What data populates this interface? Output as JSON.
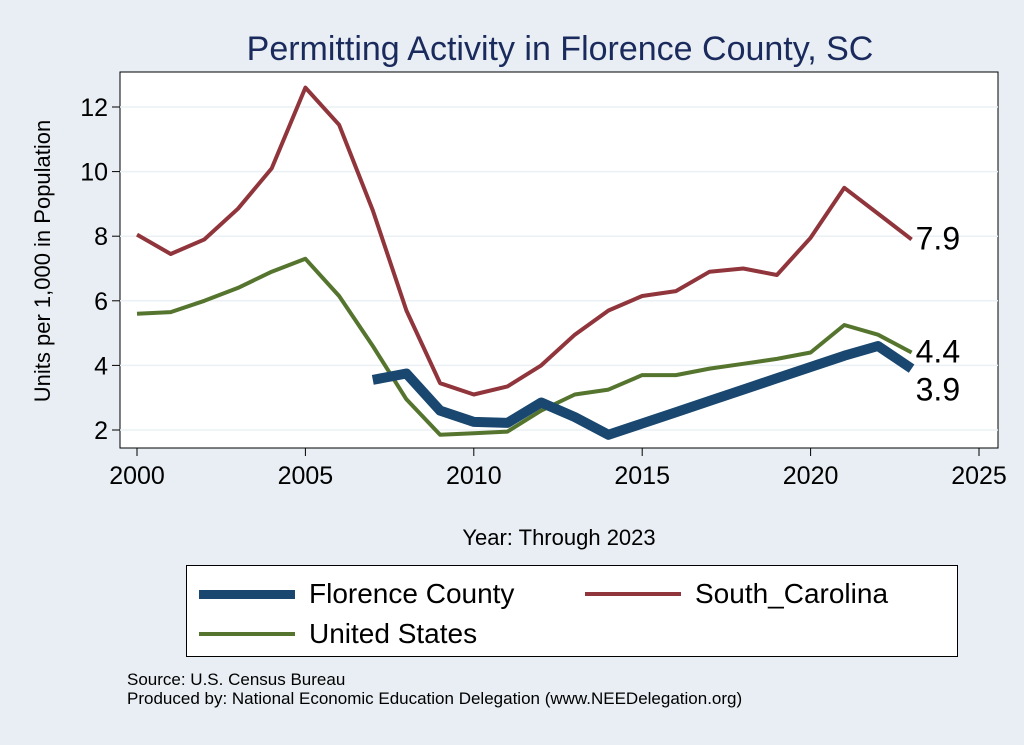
{
  "chart_data": {
    "type": "line",
    "title": "Permitting Activity in Florence County, SC",
    "xlabel": "Year: Through 2023",
    "ylabel": "Units per 1,000 in Population",
    "xlim": [
      2000,
      2025
    ],
    "ylim": [
      1.5,
      13
    ],
    "xticks": [
      2000,
      2005,
      2010,
      2015,
      2020,
      2025
    ],
    "yticks": [
      2,
      4,
      6,
      8,
      10,
      12
    ],
    "grid": true,
    "legend_position": "bottom",
    "series": [
      {
        "name": "Florence County",
        "color": "#1a476f",
        "x": [
          2007,
          2008,
          2009,
          2010,
          2011,
          2012,
          2013,
          2014,
          2015,
          2016,
          2017,
          2018,
          2019,
          2020,
          2021,
          2022,
          2023
        ],
        "y": [
          3.55,
          3.75,
          2.6,
          2.25,
          2.22,
          2.85,
          2.4,
          1.85,
          2.2,
          2.55,
          2.9,
          3.25,
          3.6,
          3.95,
          4.3,
          4.6,
          3.9
        ],
        "end_label": "3.9"
      },
      {
        "name": "South_Carolina",
        "color": "#90353b",
        "x": [
          2000,
          2001,
          2002,
          2003,
          2004,
          2005,
          2006,
          2007,
          2008,
          2009,
          2010,
          2011,
          2012,
          2013,
          2014,
          2015,
          2016,
          2017,
          2018,
          2019,
          2020,
          2021,
          2022,
          2023
        ],
        "y": [
          8.05,
          7.45,
          7.9,
          8.85,
          10.1,
          12.6,
          11.45,
          8.8,
          5.7,
          3.45,
          3.1,
          3.35,
          4.0,
          4.95,
          5.7,
          6.15,
          6.3,
          6.9,
          7.0,
          6.8,
          7.95,
          9.5,
          8.7,
          7.9
        ],
        "end_label": "7.9"
      },
      {
        "name": "United States",
        "color": "#55752f",
        "x": [
          2000,
          2001,
          2002,
          2003,
          2004,
          2005,
          2006,
          2007,
          2008,
          2009,
          2010,
          2011,
          2012,
          2013,
          2014,
          2015,
          2016,
          2017,
          2018,
          2019,
          2020,
          2021,
          2022,
          2023
        ],
        "y": [
          5.6,
          5.65,
          6.0,
          6.4,
          6.9,
          7.3,
          6.15,
          4.6,
          2.95,
          1.85,
          1.9,
          1.95,
          2.6,
          3.1,
          3.25,
          3.7,
          3.7,
          3.9,
          4.05,
          4.2,
          4.4,
          5.25,
          4.95,
          4.4
        ],
        "end_label": "4.4"
      }
    ],
    "legend": [
      "Florence County",
      "South_Carolina",
      "United States"
    ]
  },
  "source_lines": [
    "Source: U.S. Census Bureau",
    "Produced by: National Economic Education Delegation (www.NEEDelegation.org)"
  ]
}
